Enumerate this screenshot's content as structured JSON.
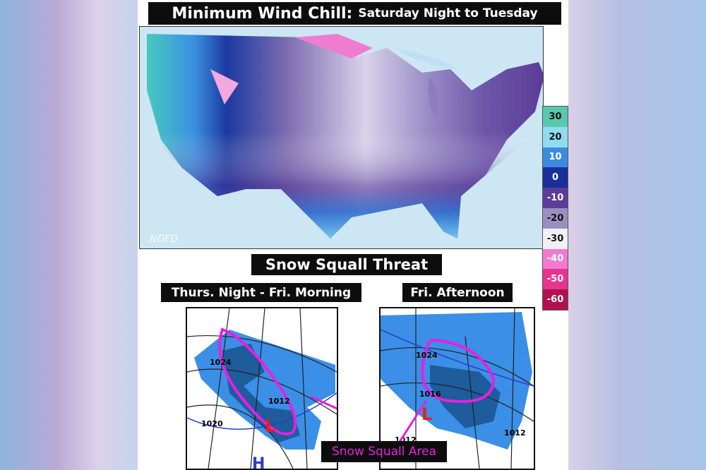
{
  "title": {
    "main": "Minimum Wind Chill:",
    "sub": "Saturday Night to Tuesday"
  },
  "top_map": {
    "watermark": "NDFD"
  },
  "legend": {
    "items": [
      {
        "label": "30",
        "color": "#59c8b0"
      },
      {
        "label": "20",
        "color": "#8fdcf0"
      },
      {
        "label": "10",
        "color": "#3d8be0"
      },
      {
        "label": "0",
        "color": "#1a2f9a"
      },
      {
        "label": "-10",
        "color": "#5b3c99"
      },
      {
        "label": "-20",
        "color": "#9c8fc0"
      },
      {
        "label": "-30",
        "color": "#f2f0f7"
      },
      {
        "label": "-40",
        "color": "#f27ad0"
      },
      {
        "label": "-50",
        "color": "#e6348f"
      },
      {
        "label": "-60",
        "color": "#b0124f"
      }
    ]
  },
  "squall": {
    "title": "Snow Squall Threat",
    "left_label": "Thurs. Night - Fri. Morning",
    "right_label": "Fri. Afternoon",
    "left_isobars": [
      "1024",
      "1012",
      "1020"
    ],
    "right_isobars": [
      "1024",
      "1016",
      "1012",
      "1012"
    ],
    "low_symbol": "L",
    "high_symbol": "H",
    "callout": "Snow Squall Area",
    "colors": {
      "snow_light": "#3b8fe6",
      "snow_heavy": "#1e5c9c",
      "outline": "#e81fe0",
      "low": "#ee1c1c"
    }
  }
}
